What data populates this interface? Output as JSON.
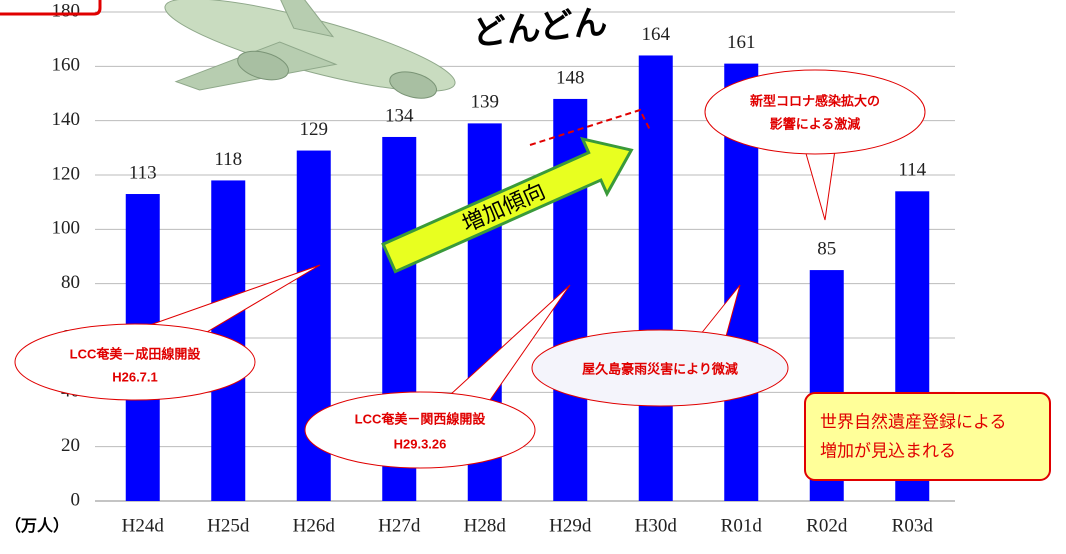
{
  "chart_data": {
    "type": "bar",
    "unit_label": "（万人）",
    "categories": [
      "H24d",
      "H25d",
      "H26d",
      "H27d",
      "H28d",
      "H29d",
      "H30d",
      "R01d",
      "R02d",
      "R03d"
    ],
    "values": [
      113,
      118,
      129,
      134,
      139,
      148,
      164,
      161,
      85,
      114
    ],
    "color": "#0000ff",
    "ylim": [
      0,
      180
    ],
    "yticks": [
      0,
      20,
      40,
      60,
      80,
      100,
      120,
      140,
      160,
      180
    ],
    "grid": true,
    "annotations": {
      "trend": "どんどん",
      "arrow": "増加傾向",
      "narita": [
        "LCC奄美－成田線開設",
        "H26.7.1"
      ],
      "kansai": [
        "LCC奄美－関西線開設",
        "H29.3.26"
      ],
      "yakushima": "屋久島豪雨災害により微減",
      "corona": [
        "新型コロナ感染拡大の",
        "影響による激減"
      ],
      "heritage": [
        "世界自然遺産登録による",
        "増加が見込まれる"
      ]
    }
  }
}
